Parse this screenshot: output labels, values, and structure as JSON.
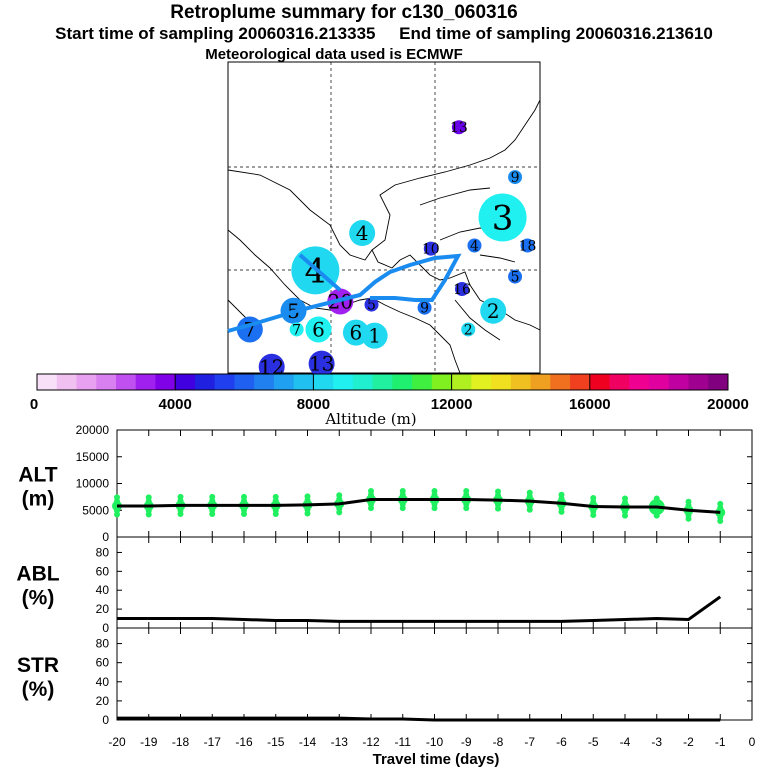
{
  "header": {
    "title": "Retroplume summary for c130_060316",
    "start_label": "Start time of sampling 20060316.213335",
    "end_label": "End time of sampling 20060316.213610",
    "met_label": "Meteorological data used is ECMWF"
  },
  "map": {
    "markers": [
      {
        "label": "13",
        "color": "#6a00e8",
        "lon": 0.74,
        "lat": 0.21,
        "size": "small"
      },
      {
        "label": "9",
        "color": "#1a8cf0",
        "lon": 0.92,
        "lat": 0.37,
        "size": "small"
      },
      {
        "label": "3",
        "color": "#20f0f0",
        "lon": 0.88,
        "lat": 0.5,
        "size": "large"
      },
      {
        "label": "4",
        "color": "#20d8f0",
        "lon": 0.43,
        "lat": 0.55,
        "size": "medium"
      },
      {
        "label": "4",
        "color": "#20d8f0",
        "lon": 0.28,
        "lat": 0.67,
        "size": "large"
      },
      {
        "label": "4",
        "color": "#1a70f0",
        "lon": 0.79,
        "lat": 0.59,
        "size": "small"
      },
      {
        "label": "10",
        "color": "#2a30e0",
        "lon": 0.65,
        "lat": 0.6,
        "size": "small"
      },
      {
        "label": "18",
        "color": "#1a70f0",
        "lon": 0.96,
        "lat": 0.59,
        "size": "small"
      },
      {
        "label": "5",
        "color": "#1a70f0",
        "lon": 0.92,
        "lat": 0.69,
        "size": "small"
      },
      {
        "label": "5",
        "color": "#1a8cf0",
        "lon": 0.21,
        "lat": 0.8,
        "size": "medium"
      },
      {
        "label": "20",
        "color": "#a020f0",
        "lon": 0.36,
        "lat": 0.77,
        "size": "medium"
      },
      {
        "label": "5",
        "color": "#2a30e0",
        "lon": 0.46,
        "lat": 0.78,
        "size": "small"
      },
      {
        "label": "9",
        "color": "#1a70f0",
        "lon": 0.63,
        "lat": 0.79,
        "size": "small"
      },
      {
        "label": "16",
        "color": "#2a30e0",
        "lon": 0.75,
        "lat": 0.73,
        "size": "small"
      },
      {
        "label": "2",
        "color": "#20d8f0",
        "lon": 0.85,
        "lat": 0.8,
        "size": "medium"
      },
      {
        "label": "2",
        "color": "#20d8f0",
        "lon": 0.77,
        "lat": 0.86,
        "size": "small"
      },
      {
        "label": "6",
        "color": "#20f0f0",
        "lon": 0.29,
        "lat": 0.86,
        "size": "medium"
      },
      {
        "label": "6",
        "color": "#20d8f0",
        "lon": 0.41,
        "lat": 0.87,
        "size": "medium"
      },
      {
        "label": "1",
        "color": "#20d8f0",
        "lon": 0.47,
        "lat": 0.88,
        "size": "medium"
      },
      {
        "label": "7",
        "color": "#1a70f0",
        "lon": 0.07,
        "lat": 0.86,
        "size": "medium"
      },
      {
        "label": "7",
        "color": "#20f0f0",
        "lon": 0.22,
        "lat": 0.86,
        "size": "small"
      },
      {
        "label": "12",
        "color": "#2a30e0",
        "lon": 0.14,
        "lat": 0.98,
        "size": "medium"
      },
      {
        "label": "13",
        "color": "#2a30e0",
        "lon": 0.3,
        "lat": 0.97,
        "size": "medium"
      }
    ]
  },
  "colorbar": {
    "label": "Altitude (m)",
    "ticks": [
      "0",
      "4000",
      "8000",
      "12000",
      "16000",
      "20000"
    ],
    "colors": [
      "#f8e0f8",
      "#f0c0f0",
      "#e8a0f0",
      "#d880f0",
      "#c050f0",
      "#a020f0",
      "#8000e8",
      "#4000e0",
      "#2020e0",
      "#2040f0",
      "#2060f0",
      "#2080f0",
      "#20a0f0",
      "#20c0f0",
      "#20d8f0",
      "#20f0f0",
      "#20f0d0",
      "#20f0a0",
      "#20f070",
      "#40f040",
      "#80f020",
      "#b0f020",
      "#e0f020",
      "#f0e020",
      "#f0c020",
      "#f0a020",
      "#f07020",
      "#f04020",
      "#f00020",
      "#f00060",
      "#f00090",
      "#e000a0",
      "#c000a0",
      "#a00090",
      "#800080"
    ]
  },
  "chart_data": [
    {
      "type": "line",
      "name": "ALT",
      "ylabel": "ALT\n(m)",
      "ylabel_line1": "ALT",
      "ylabel_line2": "(m)",
      "ylim": [
        0,
        20000
      ],
      "yticks": [
        "0",
        "5000",
        "10000",
        "15000",
        "20000"
      ],
      "x": [
        -20,
        -19,
        -18,
        -17,
        -16,
        -15,
        -14,
        -13,
        -12,
        -11,
        -10,
        -9,
        -8,
        -7,
        -6,
        -5,
        -4,
        -3,
        -2,
        -1
      ],
      "values": [
        5800,
        5800,
        5900,
        5900,
        5900,
        5900,
        6000,
        6200,
        7000,
        7000,
        7000,
        7000,
        6900,
        6700,
        6300,
        5700,
        5600,
        5600,
        5000,
        4600
      ],
      "point_color": "#20f060"
    },
    {
      "type": "line",
      "name": "ABL",
      "ylabel_line1": "ABL",
      "ylabel_line2": "(%)",
      "ylim": [
        0,
        90
      ],
      "yticks": [
        "0",
        "20",
        "40",
        "60",
        "80"
      ],
      "x": [
        -20,
        -19,
        -18,
        -17,
        -16,
        -15,
        -14,
        -13,
        -12,
        -11,
        -10,
        -9,
        -8,
        -7,
        -6,
        -5,
        -4,
        -3,
        -2,
        -1
      ],
      "values": [
        10,
        10,
        10,
        10,
        9,
        8,
        8,
        7,
        7,
        7,
        7,
        7,
        7,
        7,
        7,
        8,
        9,
        10,
        9,
        33
      ]
    },
    {
      "type": "line",
      "name": "STR",
      "ylabel_line1": "STR",
      "ylabel_line2": "(%)",
      "ylim": [
        0,
        90
      ],
      "yticks": [
        "0",
        "20",
        "40",
        "60",
        "80"
      ],
      "x": [
        -20,
        -19,
        -18,
        -17,
        -16,
        -15,
        -14,
        -13,
        -12,
        -11,
        -10,
        -9,
        -8,
        -7,
        -6,
        -5,
        -4,
        -3,
        -2,
        -1
      ],
      "values": [
        2,
        2,
        2,
        2,
        2,
        2,
        2,
        2,
        1,
        1,
        0,
        0,
        0,
        0,
        0,
        0,
        0,
        0,
        0,
        0
      ]
    }
  ],
  "xaxis": {
    "label": "Travel time (days)",
    "ticks": [
      "-20",
      "-19",
      "-18",
      "-17",
      "-16",
      "-15",
      "-14",
      "-13",
      "-12",
      "-11",
      "-10",
      "-9",
      "-8",
      "-7",
      "-6",
      "-5",
      "-4",
      "-3",
      "-2",
      "-1",
      "0"
    ]
  }
}
